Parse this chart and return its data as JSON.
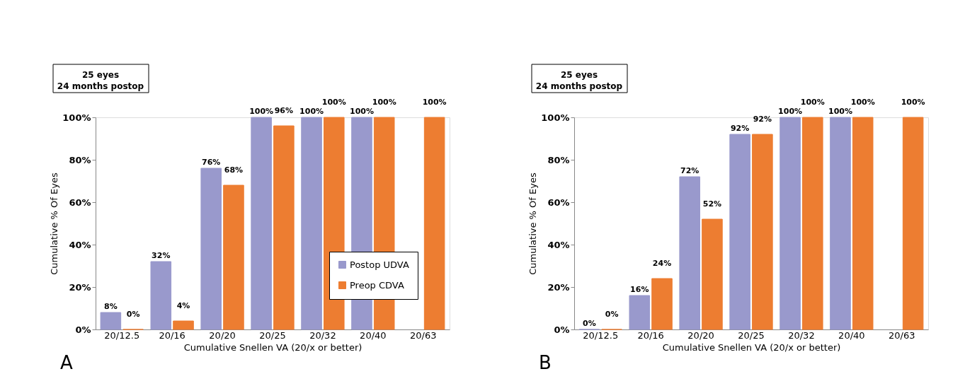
{
  "chart_data": [
    {
      "type": "bar",
      "categories": [
        "20/12.5",
        "20/16",
        "20/20",
        "20/25",
        "20/32",
        "20/40",
        "20/63"
      ],
      "xlabel": "Cumulative Snellen VA (20/x or better)",
      "ylabel": "Cumulative % Of Eyes",
      "ylim": [
        0,
        100
      ],
      "yticks": [
        {
          "value": 0,
          "label": "0%"
        },
        {
          "value": 20,
          "label": "20%"
        },
        {
          "value": 40,
          "label": "40%"
        },
        {
          "value": 60,
          "label": "60%"
        },
        {
          "value": 80,
          "label": "80%"
        },
        {
          "value": 100,
          "label": "100%"
        }
      ],
      "grid": false,
      "legend": "bottom right",
      "data_labels": true,
      "series": [
        {
          "name": "Postop UDVA",
          "color": "#9999cc",
          "values": [
            8,
            32,
            76,
            100,
            100,
            100,
            null
          ],
          "value_labels": [
            "8%",
            "32%",
            "76%",
            "100%",
            "100%",
            "100%",
            null
          ]
        },
        {
          "name": "Preop CDVA",
          "color": "#ed7d31",
          "values": [
            0,
            4,
            68,
            96,
            100,
            100,
            100
          ],
          "value_labels": [
            "0%",
            "4%",
            "68%",
            "96%",
            "100%",
            "100%",
            "100%"
          ]
        }
      ],
      "annotations": [
        "25 eyes\n24 months postop",
        "A"
      ]
    },
    {
      "type": "bar",
      "categories": [
        "20/12.5",
        "20/16",
        "20/20",
        "20/25",
        "20/32",
        "20/40",
        "20/63"
      ],
      "xlabel": "Cumulative Snellen VA (20/x or better)",
      "ylabel": "Cumulative % Of Eyes",
      "ylim": [
        0,
        100
      ],
      "yticks": [
        {
          "value": 0,
          "label": "0%"
        },
        {
          "value": 20,
          "label": "20%"
        },
        {
          "value": 40,
          "label": "40%"
        },
        {
          "value": 60,
          "label": "60%"
        },
        {
          "value": 80,
          "label": "80%"
        },
        {
          "value": 100,
          "label": "100%"
        }
      ],
      "grid": false,
      "legend": "bottom right",
      "data_labels": true,
      "series": [
        {
          "name": "Postop UDVA",
          "color": "#9999cc",
          "values": [
            0,
            16,
            72,
            92,
            100,
            100,
            null
          ],
          "value_labels": [
            "0%",
            "16%",
            "72%",
            "92%",
            "100%",
            "100%",
            null
          ]
        },
        {
          "name": "Preop CDVA",
          "color": "#ed7d31",
          "values": [
            0,
            24,
            52,
            92,
            100,
            100,
            100
          ],
          "value_labels": [
            "0%",
            "24%",
            "52%",
            "92%",
            "100%",
            "100%",
            "100%"
          ]
        }
      ],
      "annotations": [
        "25 eyes\n24 months postop",
        "B"
      ]
    }
  ]
}
